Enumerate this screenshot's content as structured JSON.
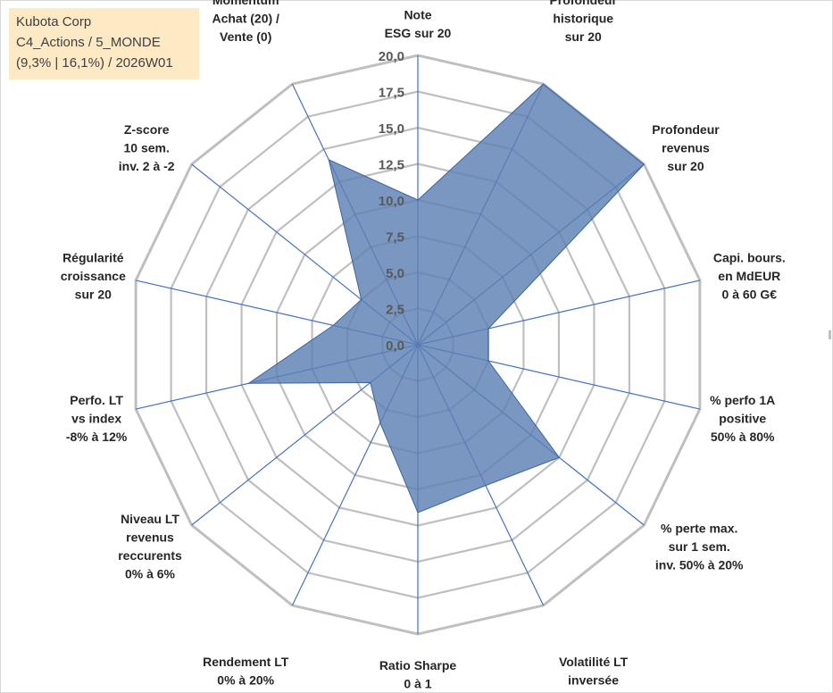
{
  "info": {
    "line1": "Kubota Corp",
    "line2": "C4_Actions / 5_MONDE",
    "line3": "(9,3% | 16,1%) / 2026W01"
  },
  "chart_data": {
    "type": "radar",
    "title": "",
    "rmin": 0,
    "rmax": 20,
    "tick_step": 2.5,
    "tick_labels": [
      "0,0",
      "2,5",
      "5,0",
      "7,5",
      "10,0",
      "12,5",
      "15,0",
      "17,5",
      "20,0"
    ],
    "axes": [
      [
        "Note",
        "ESG sur 20"
      ],
      [
        "Profondeur",
        "historique",
        "sur 20"
      ],
      [
        "Profondeur",
        "revenus",
        "sur 20"
      ],
      [
        "Capi. bours.",
        "en MdEUR",
        "0 à 60 G€"
      ],
      [
        "% perfo 1A",
        "positive",
        "50% à 80%"
      ],
      [
        "% perte max.",
        "sur 1 sem.",
        "inv. 50% à 20%"
      ],
      [
        "Volatilité LT",
        "inversée",
        "40% à 0%"
      ],
      [
        "Ratio Sharpe",
        "0 à 1"
      ],
      [
        "Rendement LT",
        "0% à 20%"
      ],
      [
        "Niveau LT",
        "revenus",
        "reccurents",
        "0% à 6%"
      ],
      [
        "Perfo. LT",
        "vs index",
        "-8% à 12%"
      ],
      [
        "Régularité",
        "croissance",
        "sur 20"
      ],
      [
        "Z-score",
        "10 sem.",
        "inv. 2 à -2"
      ],
      [
        "Momentum",
        "Achat (20) /",
        "Vente (0)"
      ]
    ],
    "series": [
      {
        "name": "Kubota Corp",
        "values": [
          10.0,
          20.0,
          20.0,
          5.0,
          5.0,
          12.5,
          10.8,
          11.6,
          6.0,
          4.2,
          12.0,
          6.0,
          5.0,
          14.2
        ]
      }
    ],
    "colors": {
      "fill": "#5b80b2",
      "fill_opacity": "0.82",
      "outline": "#3c64a0",
      "spoke": "#4472c4",
      "grid": "#bfbfbf"
    }
  }
}
